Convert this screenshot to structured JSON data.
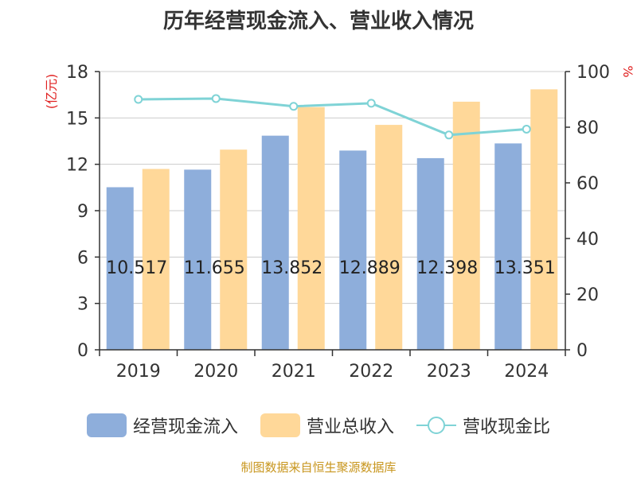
{
  "chart_data": {
    "type": "bar",
    "title": "历年经营现金流入、营业收入情况",
    "categories": [
      "2019",
      "2020",
      "2021",
      "2022",
      "2023",
      "2024"
    ],
    "series": [
      {
        "name": "经营现金流入",
        "axis": "left",
        "kind": "bar",
        "color": "#8eaedb",
        "values": [
          10.517,
          11.655,
          13.852,
          12.889,
          12.398,
          13.351
        ]
      },
      {
        "name": "营业总收入",
        "axis": "left",
        "kind": "bar",
        "color": "#ffd899",
        "values": [
          11.7,
          12.95,
          15.7,
          14.55,
          16.05,
          16.85
        ]
      },
      {
        "name": "营收现金比",
        "axis": "right",
        "kind": "line",
        "color": "#7fd3d6",
        "values": [
          90,
          90.3,
          87.5,
          88.6,
          77.2,
          79.3
        ]
      }
    ],
    "data_labels": [
      "10.517",
      "11.655",
      "13.852",
      "12.889",
      "12.398",
      "13.351"
    ],
    "left_axis": {
      "unit": "(亿元)",
      "ylim": [
        0,
        18
      ],
      "ticks": [
        "0",
        "3",
        "6",
        "9",
        "12",
        "15",
        "18"
      ]
    },
    "right_axis": {
      "unit": "%",
      "ylim": [
        0,
        100
      ],
      "ticks": [
        "0",
        "20",
        "40",
        "60",
        "80",
        "100"
      ]
    },
    "grid": true,
    "legend_position": "bottom"
  },
  "source": "制图数据来自恒生聚源数据库"
}
